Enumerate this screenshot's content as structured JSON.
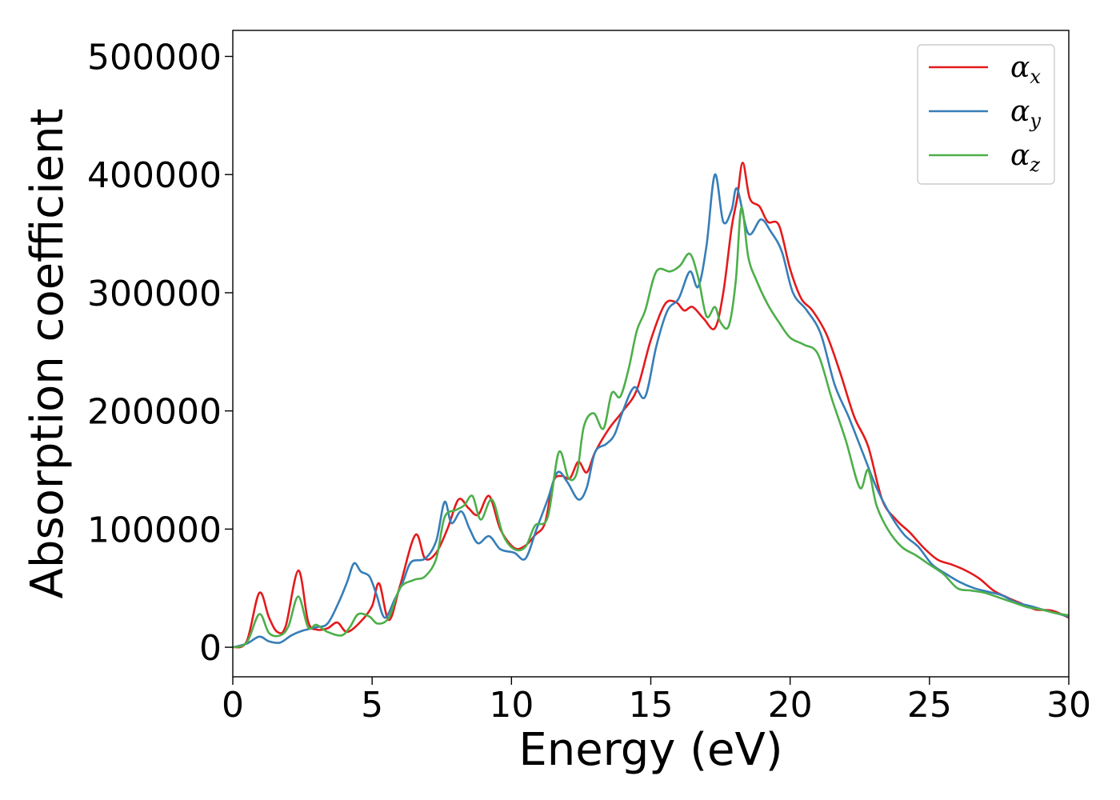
{
  "chart_data": {
    "type": "line",
    "title": "",
    "xlabel": "Energy (eV)",
    "ylabel": "Absorption coefficient",
    "xlim": [
      0,
      30
    ],
    "ylim": [
      -25000,
      522000
    ],
    "xticks": [
      0,
      5,
      10,
      15,
      20,
      25,
      30
    ],
    "yticks": [
      0,
      100000,
      200000,
      300000,
      400000,
      500000
    ],
    "grid": false,
    "legend_position": "top-right",
    "series": [
      {
        "name": "α_x",
        "symbol": "α",
        "subscript": "x",
        "color": "#e41a1c",
        "points": [
          [
            0,
            0
          ],
          [
            0.5,
            5000
          ],
          [
            0.95,
            46000
          ],
          [
            1.3,
            25000
          ],
          [
            1.6,
            13000
          ],
          [
            1.9,
            18000
          ],
          [
            2.35,
            65000
          ],
          [
            2.7,
            22000
          ],
          [
            3.0,
            15000
          ],
          [
            3.4,
            16000
          ],
          [
            3.75,
            21000
          ],
          [
            4.1,
            13000
          ],
          [
            4.6,
            22000
          ],
          [
            5.0,
            35000
          ],
          [
            5.25,
            54000
          ],
          [
            5.6,
            23000
          ],
          [
            6.0,
            52000
          ],
          [
            6.55,
            95000
          ],
          [
            6.9,
            75000
          ],
          [
            7.3,
            80000
          ],
          [
            7.7,
            100000
          ],
          [
            8.1,
            125000
          ],
          [
            8.45,
            118000
          ],
          [
            8.8,
            112000
          ],
          [
            9.2,
            128000
          ],
          [
            9.6,
            100000
          ],
          [
            10.1,
            84000
          ],
          [
            10.5,
            86000
          ],
          [
            10.85,
            95000
          ],
          [
            11.2,
            105000
          ],
          [
            11.5,
            140000
          ],
          [
            11.8,
            145000
          ],
          [
            12.1,
            143000
          ],
          [
            12.4,
            157000
          ],
          [
            12.7,
            148000
          ],
          [
            13.0,
            165000
          ],
          [
            13.5,
            185000
          ],
          [
            14.0,
            200000
          ],
          [
            14.5,
            218000
          ],
          [
            15.0,
            260000
          ],
          [
            15.5,
            290000
          ],
          [
            15.9,
            292000
          ],
          [
            16.2,
            285000
          ],
          [
            16.5,
            288000
          ],
          [
            16.9,
            278000
          ],
          [
            17.3,
            270000
          ],
          [
            17.6,
            300000
          ],
          [
            17.9,
            355000
          ],
          [
            18.1,
            380000
          ],
          [
            18.3,
            410000
          ],
          [
            18.55,
            380000
          ],
          [
            18.9,
            373000
          ],
          [
            19.2,
            360000
          ],
          [
            19.6,
            357000
          ],
          [
            20.0,
            320000
          ],
          [
            20.4,
            295000
          ],
          [
            20.8,
            285000
          ],
          [
            21.3,
            265000
          ],
          [
            21.8,
            232000
          ],
          [
            22.3,
            195000
          ],
          [
            22.8,
            170000
          ],
          [
            23.3,
            125000
          ],
          [
            23.8,
            108000
          ],
          [
            24.3,
            97000
          ],
          [
            24.8,
            84000
          ],
          [
            25.3,
            74000
          ],
          [
            25.8,
            70000
          ],
          [
            26.3,
            65000
          ],
          [
            26.8,
            58000
          ],
          [
            27.3,
            48000
          ],
          [
            27.8,
            42000
          ],
          [
            28.3,
            37000
          ],
          [
            28.8,
            32000
          ],
          [
            29.4,
            31000
          ],
          [
            30,
            25000
          ]
        ]
      },
      {
        "name": "α_y",
        "symbol": "α",
        "subscript": "y",
        "color": "#377eb8",
        "points": [
          [
            0,
            0
          ],
          [
            0.5,
            3000
          ],
          [
            0.95,
            9000
          ],
          [
            1.3,
            5000
          ],
          [
            1.7,
            4000
          ],
          [
            2.1,
            10000
          ],
          [
            2.5,
            14000
          ],
          [
            3.0,
            17000
          ],
          [
            3.4,
            20000
          ],
          [
            3.8,
            38000
          ],
          [
            4.1,
            55000
          ],
          [
            4.35,
            71000
          ],
          [
            4.6,
            64000
          ],
          [
            4.9,
            60000
          ],
          [
            5.15,
            45000
          ],
          [
            5.45,
            25000
          ],
          [
            5.8,
            40000
          ],
          [
            6.1,
            55000
          ],
          [
            6.4,
            72000
          ],
          [
            6.9,
            75000
          ],
          [
            7.3,
            90000
          ],
          [
            7.6,
            123000
          ],
          [
            7.85,
            105000
          ],
          [
            8.2,
            115000
          ],
          [
            8.5,
            100000
          ],
          [
            8.8,
            88000
          ],
          [
            9.2,
            94000
          ],
          [
            9.6,
            83000
          ],
          [
            10.1,
            80000
          ],
          [
            10.5,
            75000
          ],
          [
            10.9,
            100000
          ],
          [
            11.3,
            125000
          ],
          [
            11.65,
            148000
          ],
          [
            12.0,
            140000
          ],
          [
            12.4,
            125000
          ],
          [
            12.7,
            135000
          ],
          [
            13.0,
            165000
          ],
          [
            13.4,
            172000
          ],
          [
            13.7,
            180000
          ],
          [
            14.0,
            200000
          ],
          [
            14.4,
            220000
          ],
          [
            14.8,
            212000
          ],
          [
            15.2,
            255000
          ],
          [
            15.6,
            285000
          ],
          [
            16.0,
            295000
          ],
          [
            16.4,
            318000
          ],
          [
            16.7,
            305000
          ],
          [
            17.0,
            340000
          ],
          [
            17.3,
            400000
          ],
          [
            17.6,
            360000
          ],
          [
            17.9,
            370000
          ],
          [
            18.1,
            388000
          ],
          [
            18.5,
            350000
          ],
          [
            18.95,
            362000
          ],
          [
            19.3,
            352000
          ],
          [
            19.7,
            335000
          ],
          [
            20.1,
            300000
          ],
          [
            20.6,
            285000
          ],
          [
            21.1,
            265000
          ],
          [
            21.6,
            222000
          ],
          [
            22.1,
            195000
          ],
          [
            22.6,
            165000
          ],
          [
            23.1,
            135000
          ],
          [
            23.6,
            112000
          ],
          [
            24.1,
            95000
          ],
          [
            24.6,
            85000
          ],
          [
            25.1,
            70000
          ],
          [
            25.6,
            62000
          ],
          [
            26.1,
            55000
          ],
          [
            26.6,
            50000
          ],
          [
            27.1,
            47000
          ],
          [
            27.6,
            44000
          ],
          [
            28.1,
            38000
          ],
          [
            28.6,
            35000
          ],
          [
            29.2,
            31000
          ],
          [
            30,
            26000
          ]
        ]
      },
      {
        "name": "α_z",
        "symbol": "α",
        "subscript": "z",
        "color": "#4daf4a",
        "points": [
          [
            0,
            0
          ],
          [
            0.5,
            4000
          ],
          [
            0.95,
            28000
          ],
          [
            1.3,
            12000
          ],
          [
            1.7,
            10000
          ],
          [
            2.0,
            18000
          ],
          [
            2.35,
            43000
          ],
          [
            2.7,
            17000
          ],
          [
            3.0,
            19000
          ],
          [
            3.4,
            13000
          ],
          [
            3.9,
            10000
          ],
          [
            4.2,
            17000
          ],
          [
            4.5,
            28000
          ],
          [
            4.9,
            26000
          ],
          [
            5.2,
            20000
          ],
          [
            5.6,
            25000
          ],
          [
            6.0,
            50000
          ],
          [
            6.5,
            57000
          ],
          [
            6.9,
            60000
          ],
          [
            7.3,
            75000
          ],
          [
            7.6,
            110000
          ],
          [
            8.0,
            116000
          ],
          [
            8.3,
            120000
          ],
          [
            8.6,
            128000
          ],
          [
            8.9,
            108000
          ],
          [
            9.3,
            125000
          ],
          [
            9.7,
            95000
          ],
          [
            10.1,
            83000
          ],
          [
            10.5,
            85000
          ],
          [
            10.85,
            103000
          ],
          [
            11.3,
            110000
          ],
          [
            11.7,
            165000
          ],
          [
            12.05,
            143000
          ],
          [
            12.35,
            148000
          ],
          [
            12.6,
            187000
          ],
          [
            12.95,
            198000
          ],
          [
            13.3,
            185000
          ],
          [
            13.6,
            215000
          ],
          [
            13.9,
            212000
          ],
          [
            14.2,
            235000
          ],
          [
            14.5,
            268000
          ],
          [
            14.8,
            285000
          ],
          [
            15.2,
            318000
          ],
          [
            15.7,
            318000
          ],
          [
            16.05,
            323000
          ],
          [
            16.4,
            333000
          ],
          [
            16.7,
            313000
          ],
          [
            17.0,
            280000
          ],
          [
            17.3,
            288000
          ],
          [
            17.5,
            275000
          ],
          [
            17.8,
            272000
          ],
          [
            18.05,
            310000
          ],
          [
            18.25,
            372000
          ],
          [
            18.5,
            330000
          ],
          [
            18.8,
            310000
          ],
          [
            19.2,
            290000
          ],
          [
            19.6,
            275000
          ],
          [
            20.0,
            262000
          ],
          [
            20.5,
            256000
          ],
          [
            21.0,
            248000
          ],
          [
            21.5,
            210000
          ],
          [
            22.0,
            175000
          ],
          [
            22.5,
            135000
          ],
          [
            22.8,
            150000
          ],
          [
            23.1,
            120000
          ],
          [
            23.5,
            100000
          ],
          [
            24.0,
            85000
          ],
          [
            24.5,
            78000
          ],
          [
            25.0,
            70000
          ],
          [
            25.5,
            62000
          ],
          [
            26.0,
            50000
          ],
          [
            26.5,
            48000
          ],
          [
            27.0,
            46000
          ],
          [
            27.5,
            42000
          ],
          [
            28.0,
            38000
          ],
          [
            28.5,
            34000
          ],
          [
            29.0,
            32000
          ],
          [
            29.5,
            29000
          ],
          [
            30,
            27000
          ]
        ]
      }
    ]
  }
}
